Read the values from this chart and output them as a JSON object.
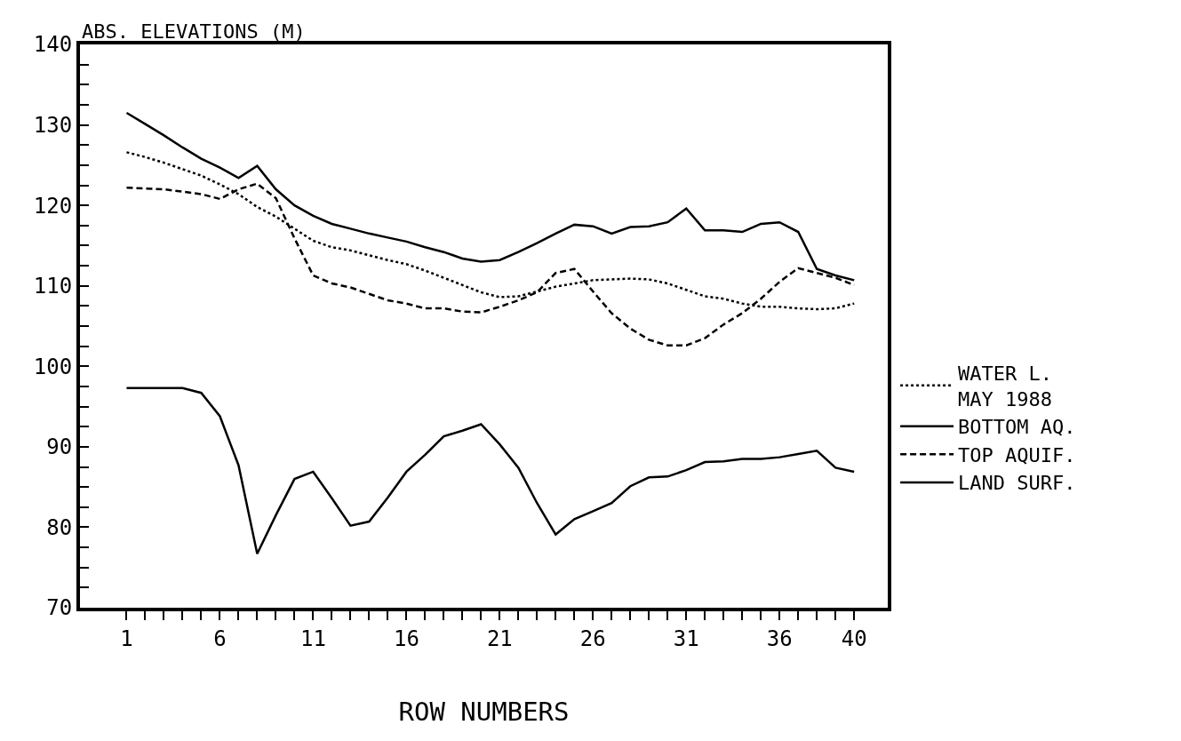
{
  "chart_data": {
    "type": "line",
    "ylabel": "ABS. ELEVATIONS (M)",
    "xlabel": "ROW NUMBERS",
    "x": [
      1,
      2,
      3,
      4,
      5,
      6,
      7,
      8,
      9,
      10,
      11,
      12,
      13,
      14,
      15,
      16,
      17,
      18,
      19,
      20,
      21,
      22,
      23,
      24,
      25,
      26,
      27,
      28,
      29,
      30,
      31,
      32,
      33,
      34,
      35,
      36,
      37,
      38,
      39,
      40
    ],
    "xlim": [
      -1.5,
      41.8
    ],
    "xticks": [
      1,
      {
        "value": 2,
        "label": null
      },
      {
        "value": 3,
        "label": null
      },
      {
        "value": 4,
        "label": null
      },
      {
        "value": 5,
        "label": null
      },
      6,
      {
        "value": 7,
        "label": null
      },
      {
        "value": 8,
        "label": null
      },
      {
        "value": 9,
        "label": null
      },
      {
        "value": 10,
        "label": null
      },
      11,
      {
        "value": 12,
        "label": null
      },
      {
        "value": 13,
        "label": null
      },
      {
        "value": 14,
        "label": null
      },
      {
        "value": 15,
        "label": null
      },
      16,
      {
        "value": 17,
        "label": null
      },
      {
        "value": 18,
        "label": null
      },
      {
        "value": 19,
        "label": null
      },
      {
        "value": 20,
        "label": null
      },
      21,
      {
        "value": 22,
        "label": null
      },
      {
        "value": 23,
        "label": null
      },
      {
        "value": 24,
        "label": null
      },
      {
        "value": 25,
        "label": null
      },
      26,
      {
        "value": 27,
        "label": null
      },
      {
        "value": 28,
        "label": null
      },
      {
        "value": 29,
        "label": null
      },
      {
        "value": 30,
        "label": null
      },
      31,
      {
        "value": 32,
        "label": null
      },
      {
        "value": 33,
        "label": null
      },
      {
        "value": 34,
        "label": null
      },
      {
        "value": 35,
        "label": null
      },
      36,
      {
        "value": 37,
        "label": null
      },
      {
        "value": 38,
        "label": null
      },
      {
        "value": 39,
        "label": null
      },
      40
    ],
    "ylim": [
      70,
      140
    ],
    "yticks": [
      70,
      {
        "value": 72.5,
        "label": null
      },
      {
        "value": 75,
        "label": null
      },
      {
        "value": 77.5,
        "label": null
      },
      80,
      {
        "value": 82.5,
        "label": null
      },
      {
        "value": 85,
        "label": null
      },
      {
        "value": 87.5,
        "label": null
      },
      90,
      {
        "value": 92.5,
        "label": null
      },
      {
        "value": 95,
        "label": null
      },
      {
        "value": 97.5,
        "label": null
      },
      100,
      {
        "value": 102.5,
        "label": null
      },
      {
        "value": 105,
        "label": null
      },
      {
        "value": 107.5,
        "label": null
      },
      110,
      {
        "value": 112.5,
        "label": null
      },
      {
        "value": 115,
        "label": null
      },
      {
        "value": 117.5,
        "label": null
      },
      120,
      {
        "value": 122.5,
        "label": null
      },
      {
        "value": 125,
        "label": null
      },
      {
        "value": 127.5,
        "label": null
      },
      130,
      {
        "value": 132.5,
        "label": null
      },
      {
        "value": 135,
        "label": null
      },
      {
        "value": 137.5,
        "label": null
      },
      140
    ],
    "legend": "right",
    "marker": "none",
    "series": [
      {
        "name": "WATER L.\nMAY 1988",
        "color": "#000000",
        "line_style": "dotted",
        "values": [
          126.6,
          126.0,
          125.3,
          124.5,
          123.7,
          122.6,
          121.4,
          119.8,
          118.6,
          117.1,
          115.6,
          114.8,
          114.4,
          113.8,
          113.2,
          112.7,
          111.9,
          111.0,
          110.1,
          109.2,
          108.6,
          108.7,
          109.3,
          109.9,
          110.3,
          110.7,
          110.8,
          110.9,
          110.8,
          110.3,
          109.5,
          108.7,
          108.4,
          107.8,
          107.4,
          107.4,
          107.2,
          107.1,
          107.2,
          107.8
        ]
      },
      {
        "name": "BOTTOM AQ.",
        "color": "#000000",
        "line_style": "solid",
        "values": [
          97.3,
          97.3,
          97.3,
          97.3,
          96.7,
          93.8,
          87.7,
          76.7,
          81.5,
          86.0,
          86.9,
          83.6,
          80.2,
          80.7,
          83.7,
          86.9,
          89.0,
          91.3,
          92.0,
          92.8,
          90.3,
          87.4,
          83.0,
          79.1,
          81.0,
          82.0,
          83.0,
          85.1,
          86.2,
          86.3,
          87.1,
          88.1,
          88.2,
          88.5,
          88.5,
          88.7,
          89.1,
          89.5,
          87.4,
          86.9
        ]
      },
      {
        "name": "TOP AQUIF.",
        "color": "#000000",
        "line_style": "dashed",
        "values": [
          122.2,
          122.1,
          122.0,
          121.7,
          121.4,
          120.8,
          122.0,
          122.7,
          120.9,
          115.9,
          111.3,
          110.3,
          109.8,
          109.0,
          108.2,
          107.8,
          107.2,
          107.2,
          106.8,
          106.7,
          107.4,
          108.2,
          109.2,
          111.6,
          112.1,
          109.3,
          106.6,
          104.7,
          103.3,
          102.6,
          102.6,
          103.5,
          105.2,
          106.6,
          108.4,
          110.5,
          112.2,
          111.6,
          111.0,
          110.1
        ]
      },
      {
        "name": "LAND SURF.",
        "color": "#000000",
        "line_style": "solid",
        "values": [
          131.5,
          130.1,
          128.7,
          127.2,
          125.8,
          124.7,
          123.4,
          124.9,
          122.0,
          120.0,
          118.7,
          117.7,
          117.1,
          116.5,
          116.0,
          115.5,
          114.8,
          114.2,
          113.4,
          113.0,
          113.2,
          114.2,
          115.3,
          116.5,
          117.6,
          117.4,
          116.5,
          117.3,
          117.4,
          117.9,
          119.6,
          116.9,
          116.9,
          116.7,
          117.7,
          117.9,
          116.7,
          112.1,
          111.3,
          110.7
        ]
      }
    ]
  }
}
